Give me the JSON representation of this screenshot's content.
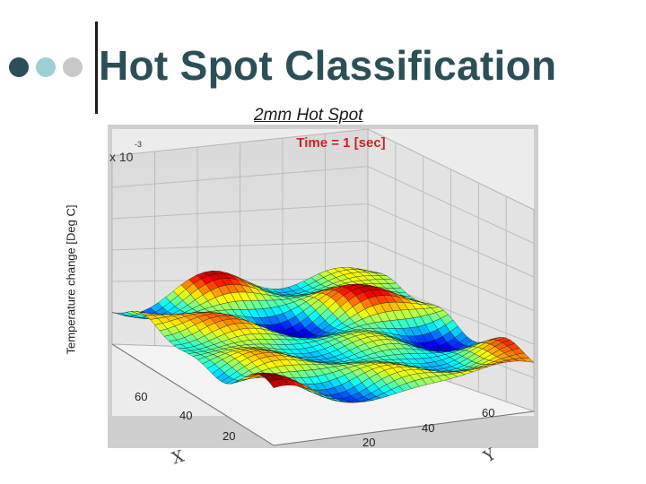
{
  "slide": {
    "title": "Hot Spot Classification",
    "bullet_colors": [
      "#2b4f57",
      "#9ccfd6",
      "#c8c8c8"
    ]
  },
  "chart_data": {
    "type": "surface",
    "title": "2mm Hot Spot",
    "plot_title": "Time = 1 [sec]",
    "zlabel": "Temperature change [Deg C]",
    "z_exponent": "x 10",
    "z_exponent_power": "-3",
    "x_axis_label": "X",
    "y_axis_label": "Y",
    "x_ticks": [
      "60",
      "40",
      "20"
    ],
    "y_ticks": [
      "20",
      "40",
      "60"
    ],
    "grid": true,
    "colormap": "jet"
  }
}
